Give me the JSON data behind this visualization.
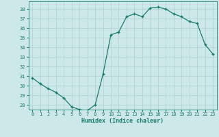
{
  "xlabel": "Humidex (Indice chaleur)",
  "x_values": [
    0,
    1,
    2,
    3,
    4,
    5,
    6,
    7,
    8,
    9,
    10,
    11,
    12,
    13,
    14,
    15,
    16,
    17,
    18,
    19,
    20,
    21,
    22,
    23
  ],
  "y_values": [
    30.8,
    30.2,
    29.7,
    29.3,
    28.7,
    27.8,
    27.5,
    27.4,
    28.0,
    31.2,
    35.3,
    35.6,
    37.2,
    37.5,
    37.2,
    38.1,
    38.2,
    38.0,
    37.5,
    37.2,
    36.7,
    36.5,
    34.3,
    33.3
  ],
  "line_color": "#1a7a6e",
  "marker_color": "#1a7a6e",
  "bg_color": "#cce8e8",
  "grid_color": "#afd0d0",
  "axes_label_color": "#1a7a6e",
  "tick_color": "#1a7a6e",
  "ylim_min": 27.5,
  "ylim_max": 38.8,
  "yticks": [
    28,
    29,
    30,
    31,
    32,
    33,
    34,
    35,
    36,
    37,
    38
  ],
  "xticks": [
    0,
    1,
    2,
    3,
    4,
    5,
    6,
    7,
    8,
    9,
    10,
    11,
    12,
    13,
    14,
    15,
    16,
    17,
    18,
    19,
    20,
    21,
    22,
    23
  ],
  "xtick_labels": [
    "0",
    "1",
    "2",
    "3",
    "4",
    "5",
    "6",
    "7",
    "8",
    "9",
    "10",
    "11",
    "12",
    "13",
    "14",
    "15",
    "16",
    "17",
    "18",
    "19",
    "20",
    "21",
    "22",
    "23"
  ]
}
